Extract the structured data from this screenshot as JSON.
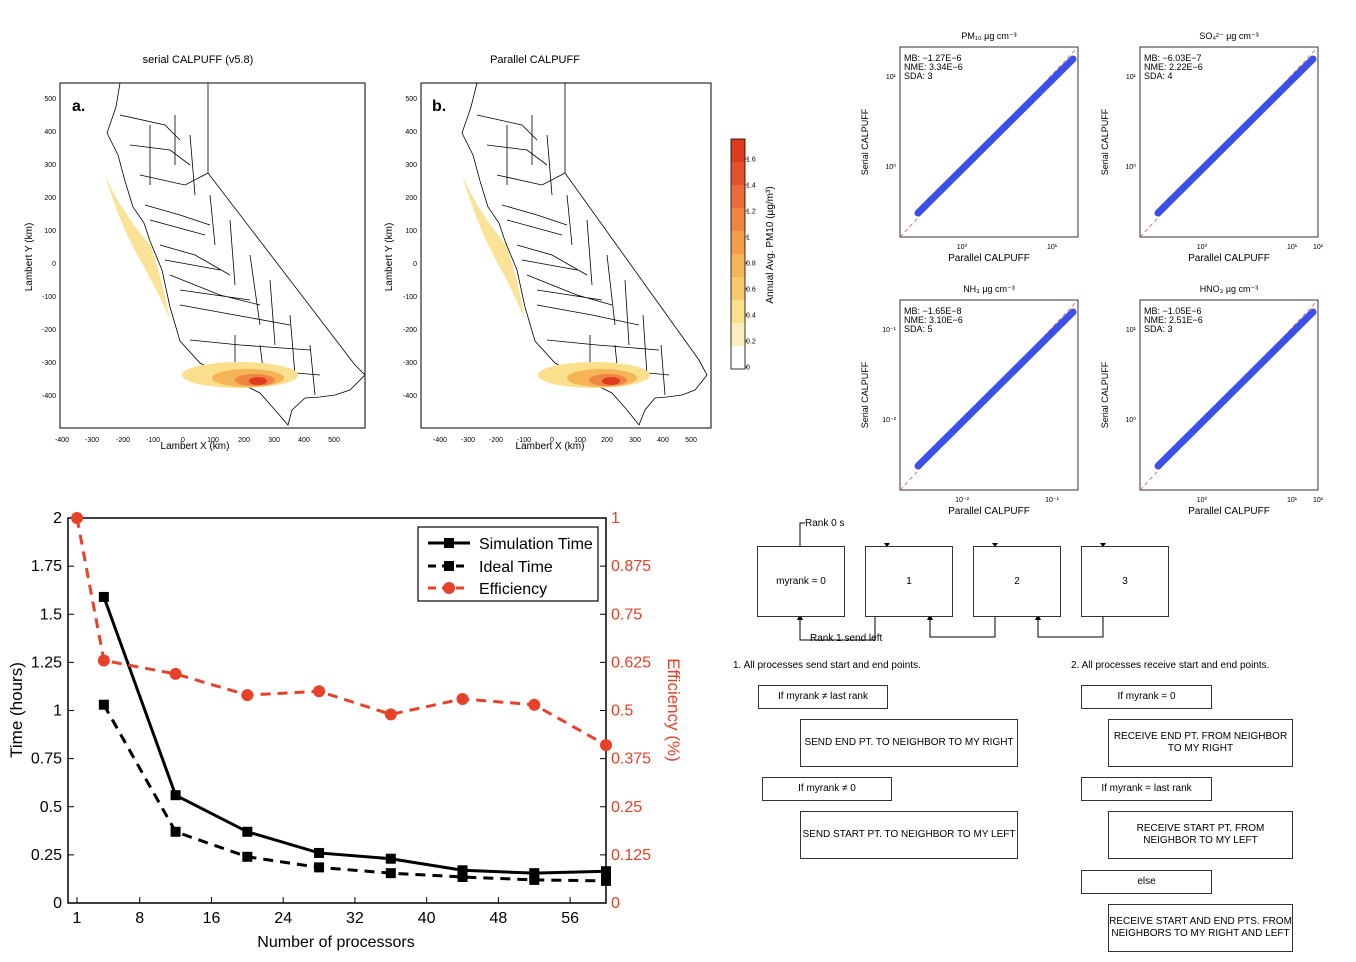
{
  "maps": {
    "a": {
      "title": "serial CALPUFF (v5.8)",
      "panel_label": "a."
    },
    "b": {
      "title": "Parallel CALPUFF",
      "panel_label": "b."
    },
    "xlabel": "Lambert X (km)",
    "ylabel": "Lambert Y (km)",
    "x_ticks": [
      "-400",
      "-300",
      "-200",
      "-100",
      "0",
      "100",
      "200",
      "300",
      "400",
      "500"
    ],
    "y_ticks": [
      "500",
      "400",
      "300",
      "200",
      "100",
      "0",
      "-100",
      "-200",
      "-300",
      "-400"
    ],
    "colorbar": {
      "label": "Annual Avg. PM10 (µg/m³)",
      "ticks": [
        "1.6",
        "1.4",
        "1.2",
        "1",
        "0.8",
        "0.6",
        "0.4",
        "0.2",
        "0"
      ],
      "colors": [
        "#de3b1f",
        "#e4522d",
        "#ea6a39",
        "#ef8443",
        "#f39d4b",
        "#f6b458",
        "#f8c96c",
        "#fadf8c",
        "#fdefbd",
        "#ffffff"
      ]
    }
  },
  "scatter": {
    "xlabel": "Parallel CALPUFF",
    "ylabel": "Serial CALPUFF",
    "panels": [
      {
        "title": "PM₁₀ µg cm⁻³",
        "mb": "MB: −1.27E−6",
        "nme": "NME: 3.34E−6",
        "sda": "SDA: 3",
        "x_ticks": [
          "10⁰",
          "10¹"
        ],
        "y_ticks": [
          "10¹",
          "10⁰"
        ]
      },
      {
        "title": "SO₄²⁻ µg cm⁻³",
        "mb": "MB: −6.03E−7",
        "nme": "NME: 2.22E−6",
        "sda": "SDA: 4",
        "x_ticks": [
          "10⁰",
          "10¹"
        ],
        "y_ticks": [
          "10¹",
          "10⁰"
        ]
      },
      {
        "title": "NH₃ µg cm⁻³",
        "mb": "MB: −1.65E−8",
        "nme": "NME: 3.10E−6",
        "sda": "SDA: 5",
        "x_ticks": [
          "10⁻²",
          "10⁻¹"
        ],
        "y_ticks": [
          "10⁻¹",
          "10⁻²"
        ]
      },
      {
        "title": "HNO₃ µg cm⁻³",
        "mb": "MB: −1.05E−6",
        "nme": "NME: 2.51E−6",
        "sda": "SDA: 3",
        "x_ticks": [
          "10⁰",
          "10¹"
        ],
        "y_ticks": [
          "10¹",
          "10⁰"
        ]
      }
    ]
  },
  "chart_data": {
    "type": "line",
    "xlabel": "Number of processors",
    "ylabel": "Time (hours)",
    "y2label": "Efficiency (%)",
    "xlim": [
      0,
      60
    ],
    "ylim": [
      0,
      2
    ],
    "y2lim": [
      0,
      1
    ],
    "x_ticks": [
      1,
      8,
      16,
      24,
      32,
      40,
      48,
      56
    ],
    "y_ticks": [
      "0",
      "0.25",
      "0.5",
      "0.75",
      "1",
      "1.25",
      "1.5",
      "1.75",
      "2"
    ],
    "y2_ticks": [
      "0",
      "0.125",
      "0.25",
      "0.375",
      "0.5",
      "0.625",
      "0.75",
      "0.875",
      "1"
    ],
    "legend_position": "top-right",
    "series": [
      {
        "name": "Simulation Time",
        "axis": "left",
        "color": "#000000",
        "style": "solid",
        "marker": "square",
        "x": [
          4,
          12,
          20,
          28,
          36,
          44,
          52,
          60
        ],
        "values": [
          1.59,
          0.56,
          0.37,
          0.26,
          0.23,
          0.17,
          0.155,
          0.165
        ]
      },
      {
        "name": "Ideal Time",
        "axis": "left",
        "color": "#000000",
        "style": "dashed",
        "marker": "square",
        "x": [
          4,
          12,
          20,
          28,
          36,
          44,
          52,
          60
        ],
        "values": [
          1.03,
          0.37,
          0.24,
          0.185,
          0.155,
          0.135,
          0.12,
          0.115
        ]
      },
      {
        "name": "Efficiency",
        "axis": "right",
        "color": "#e8412a",
        "style": "dashed",
        "marker": "circle",
        "x": [
          1,
          4,
          12,
          20,
          28,
          36,
          44,
          52,
          60
        ],
        "values": [
          1.0,
          0.63,
          0.595,
          0.54,
          0.55,
          0.49,
          0.53,
          0.515,
          0.41
        ]
      }
    ]
  },
  "flow": {
    "rank0": "Rank 0 s",
    "rank1": "Rank 1 send left",
    "boxes": [
      "myrank = 0",
      "1",
      "2",
      "3"
    ],
    "step1": "1. All processes send start and end points.",
    "step2": "2. All processes receive start and end points.",
    "left": {
      "cond1": "If myrank ≠ last rank",
      "act1": "SEND  END PT. TO NEIGHBOR TO MY RIGHT",
      "cond2": "If myrank ≠ 0",
      "act2": "SEND START PT. TO NEIGHBOR TO MY LEFT"
    },
    "right": {
      "cond1": "If myrank = 0",
      "act1": "RECEIVE END PT. FROM NEIGHBOR TO MY RIGHT",
      "cond2": "If myrank = last rank",
      "act2": "RECEIVE START PT. FROM NEIGHBOR TO MY LEFT",
      "cond3": "else",
      "act3": "RECEIVE START AND END PTS. FROM NEIGHBORS TO MY RIGHT AND LEFT"
    }
  }
}
